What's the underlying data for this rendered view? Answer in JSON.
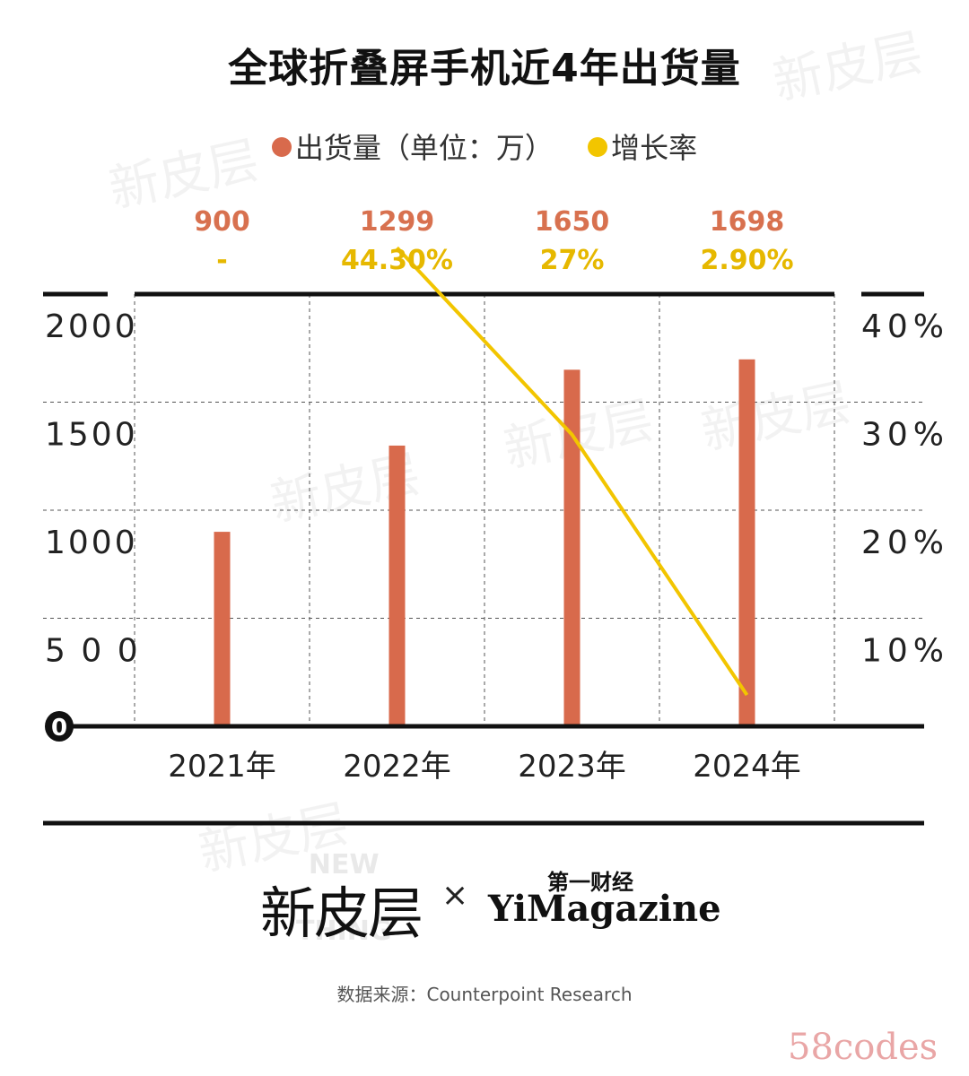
{
  "title": "全球折叠屏手机近4年出货量",
  "legend": {
    "shipment_label": "出货量（单位：万）",
    "growth_label": "增长率"
  },
  "colors": {
    "bar": "#d86a4c",
    "line": "#f2c500",
    "axis": "#111111",
    "grid": "#555555",
    "value_label": "#d8714f",
    "growth_label": "#e6b800"
  },
  "chart_data": {
    "type": "bar",
    "title": "全球折叠屏手机近4年出货量",
    "categories": [
      "2021年",
      "2022年",
      "2023年",
      "2024年"
    ],
    "series": [
      {
        "name": "出货量（单位：万）",
        "type": "bar",
        "axis": "left",
        "values": [
          900,
          1299,
          1650,
          1698
        ],
        "value_labels": [
          "900",
          "1299",
          "1650",
          "1698"
        ]
      },
      {
        "name": "增长率",
        "type": "line",
        "axis": "right",
        "values": [
          null,
          44.3,
          27,
          2.9
        ],
        "value_labels": [
          "-",
          "44.30%",
          "27%",
          "2.90%"
        ]
      }
    ],
    "left_axis": {
      "ticks": [
        0,
        500,
        1000,
        1500,
        2000
      ],
      "tick_labels": [
        "0",
        "5 0 0",
        "1000",
        "1500",
        "2000"
      ],
      "ylim": [
        0,
        2000
      ]
    },
    "right_axis": {
      "ticks": [
        10,
        20,
        30,
        40
      ],
      "tick_labels": [
        "10%",
        "20%",
        "30%",
        "40%"
      ],
      "ylim": [
        0,
        40
      ]
    },
    "grid": true
  },
  "logos": {
    "partner_cn": "新皮层",
    "partner_cn_bg_line1": "NEW",
    "partner_cn_bg_line2": "THING",
    "times": "×",
    "partner_en_top": "第一财经",
    "partner_en": "YiMagazine"
  },
  "source": "数据来源：Counterpoint Research",
  "watermark": {
    "text": "新皮层",
    "corner": "58codes"
  }
}
